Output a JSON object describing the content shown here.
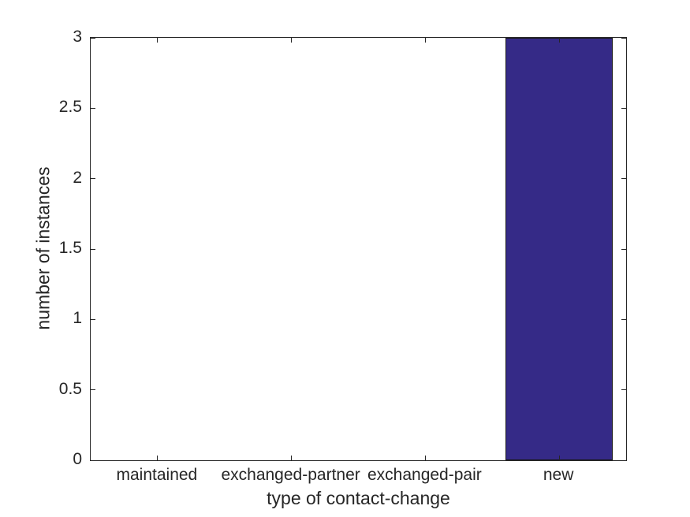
{
  "chart_data": {
    "type": "bar",
    "title": "",
    "xlabel": "type of contact-change",
    "ylabel": "number of instances",
    "categories": [
      "maintained",
      "exchanged-partner",
      "exchanged-pair",
      "new"
    ],
    "values": [
      0,
      0,
      0,
      3
    ],
    "ylim": [
      0,
      3
    ],
    "yticks": [
      "0",
      "0.5",
      "1",
      "1.5",
      "2",
      "2.5",
      "3"
    ],
    "bar_width_fraction": 0.8,
    "bar_color": "#352A87",
    "bar_edge_color": "#1a1a1a",
    "axis_color": "#262626",
    "grid": false,
    "legend": null,
    "box": true,
    "tick_direction": "in"
  }
}
